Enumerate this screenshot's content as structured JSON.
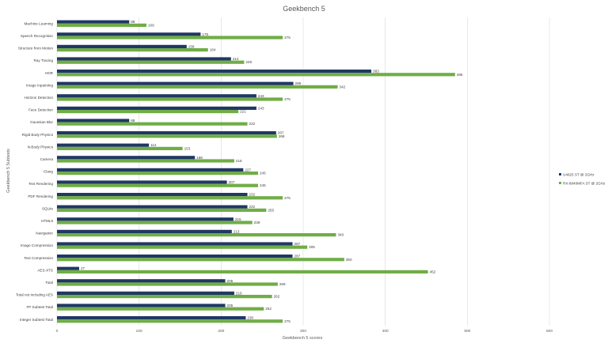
{
  "chart_data": {
    "type": "bar",
    "orientation": "horizontal",
    "title": "Geekbench 5",
    "xlabel": "Geekbench 5 scores",
    "ylabel": "Geekbench 5 Subtests",
    "xlim": [
      0,
      600
    ],
    "xticks": [
      0,
      100,
      200,
      300,
      400,
      500,
      600
    ],
    "grid": true,
    "legend_position": "right",
    "categories": [
      "Machine Learning",
      "Speech Recognition",
      "Structure from Motion",
      "Ray Tracing",
      "HDR",
      "Image Inpainting",
      "Horizon Detection",
      "Face Detection",
      "Gaussian Blur",
      "Rigid Body Physics",
      "N-Body Physics",
      "Camera",
      "Clang",
      "Text Rendering",
      "PDF Rendering",
      "SQLite",
      "HTML5",
      "Navigation",
      "Image Compression",
      "Text Compression",
      "AES-XTS",
      "Total",
      "Total not including AES",
      "FP Subtest Total",
      "Integer Subtest Total"
    ],
    "series": [
      {
        "name": "U4025 ST @ 2GHz",
        "color": "#203864",
        "values": [
          88,
          175,
          158,
          212,
          383,
          288,
          243,
          243,
          88,
          267,
          112,
          168,
          227,
          207,
          232,
          232,
          215,
          213,
          287,
          287,
          27,
          205,
          216,
          205,
          230
        ]
      },
      {
        "name": "RX-8840MFA ST @ 2GHz",
        "color": "#70ad47",
        "values": [
          109,
          275,
          184,
          228,
          485,
          342,
          275,
          221,
          232,
          268,
          153,
          216,
          245,
          245,
          275,
          255,
          238,
          340,
          305,
          350,
          452,
          269,
          262,
          252,
          275
        ]
      }
    ]
  }
}
